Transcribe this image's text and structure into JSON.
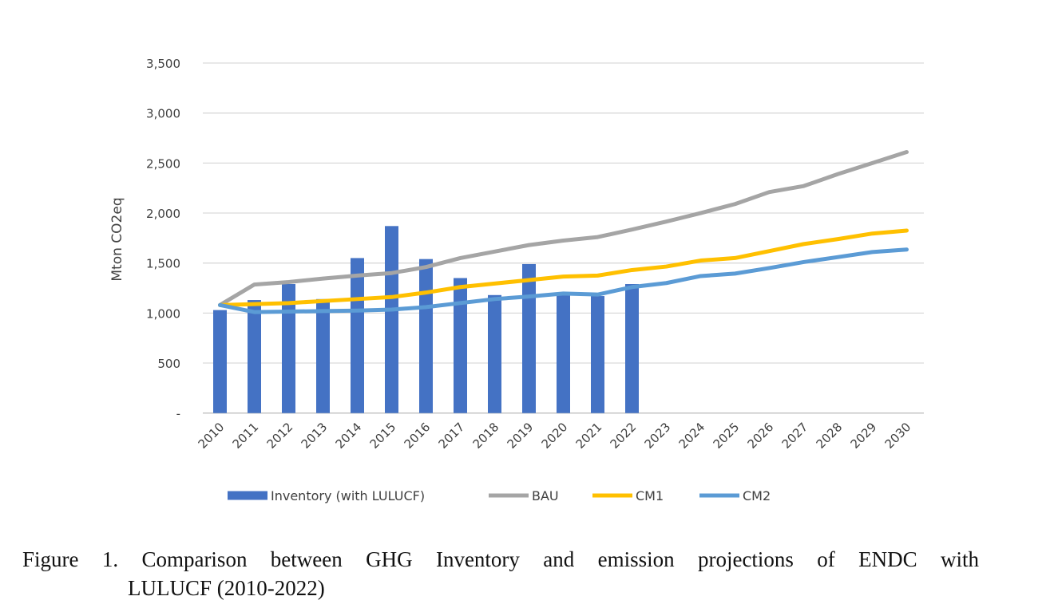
{
  "chart_data": {
    "type": "bar+line",
    "title": "",
    "xlabel": "",
    "ylabel": "Mton CO2eq",
    "ylim": [
      0,
      3500
    ],
    "yticks": [
      0,
      500,
      1000,
      1500,
      2000,
      2500,
      3000,
      3500
    ],
    "ytick_labels": [
      "-",
      "500",
      "1,000",
      "1,500",
      "2,000",
      "2,500",
      "3,000",
      "3,500"
    ],
    "grid": true,
    "legend_position": "bottom",
    "categories": [
      "2010",
      "2011",
      "2012",
      "2013",
      "2014",
      "2015",
      "2016",
      "2017",
      "2018",
      "2019",
      "2020",
      "2021",
      "2022",
      "2023",
      "2024",
      "2025",
      "2026",
      "2027",
      "2028",
      "2029",
      "2030"
    ],
    "series": [
      {
        "name": "Inventory (with LULUCF)",
        "type": "bar",
        "color": "#4472C4",
        "values": [
          1030,
          1130,
          1290,
          1140,
          1550,
          1870,
          1540,
          1350,
          1180,
          1490,
          1180,
          1170,
          1290,
          null,
          null,
          null,
          null,
          null,
          null,
          null,
          null
        ]
      },
      {
        "name": "BAU",
        "type": "line",
        "color": "#A5A5A5",
        "values": [
          1080,
          1285,
          1310,
          1345,
          1375,
          1400,
          1460,
          1550,
          1615,
          1680,
          1725,
          1760,
          1835,
          1915,
          2000,
          2090,
          2210,
          2270,
          2390,
          2500,
          2610
        ]
      },
      {
        "name": "CM1",
        "type": "line",
        "color": "#FFC000",
        "values": [
          1080,
          1090,
          1100,
          1120,
          1140,
          1160,
          1205,
          1260,
          1295,
          1330,
          1365,
          1375,
          1430,
          1465,
          1525,
          1550,
          1620,
          1690,
          1740,
          1795,
          1825
        ]
      },
      {
        "name": "CM2",
        "type": "line",
        "color": "#5B9BD5",
        "values": [
          1080,
          1010,
          1015,
          1020,
          1025,
          1035,
          1060,
          1100,
          1140,
          1165,
          1195,
          1185,
          1260,
          1300,
          1370,
          1395,
          1450,
          1510,
          1560,
          1610,
          1635
        ]
      }
    ]
  },
  "caption": {
    "line1": "Figure 1. Comparison between GHG Inventory and emission projections of ENDC with",
    "line2": "LULUCF (2010-2022)"
  }
}
